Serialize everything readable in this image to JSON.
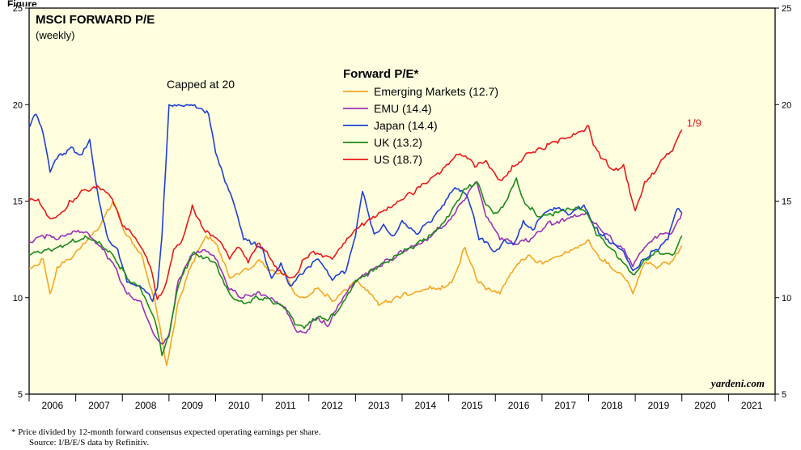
{
  "figure_label": "Figure",
  "footnote": "*   Price divided by 12-month forward consensus expected operating earnings per share.",
  "source": "Source: I/B/E/S data by Refinitiv.",
  "chart_data": {
    "type": "line",
    "title": "MSCI FORWARD P/E",
    "subtitle": "(weekly)",
    "legend_title": "Forward P/E*",
    "annotation": "Capped at 20",
    "end_label": "1/9",
    "watermark": "yardeni.com",
    "xlim": [
      2006.0,
      2022.0
    ],
    "ylim": [
      5,
      25
    ],
    "y_ticks": [
      5,
      10,
      15,
      20,
      25
    ],
    "x_tick_labels": [
      "2006",
      "2007",
      "2008",
      "2009",
      "2010",
      "2011",
      "2012",
      "2013",
      "2014",
      "2015",
      "2016",
      "2017",
      "2018",
      "2019",
      "2020",
      "2021"
    ],
    "grid": false,
    "legend_position": "top-center",
    "background_color": "#ffffe0",
    "series": [
      {
        "name": "Emerging Markets (12.7)",
        "color": "#f5a623",
        "x": [
          2006.0,
          2006.3,
          2006.45,
          2006.6,
          2006.9,
          2007.2,
          2007.5,
          2007.8,
          2008.1,
          2008.4,
          2008.7,
          2008.8,
          2008.95,
          2009.2,
          2009.5,
          2009.8,
          2010.0,
          2010.3,
          2010.5,
          2010.9,
          2011.2,
          2011.5,
          2011.7,
          2011.9,
          2012.2,
          2012.5,
          2012.8,
          2013.0,
          2013.3,
          2013.5,
          2013.8,
          2014.0,
          2014.3,
          2014.6,
          2014.9,
          2015.1,
          2015.35,
          2015.6,
          2015.8,
          2016.1,
          2016.4,
          2016.7,
          2016.9,
          2017.2,
          2017.5,
          2017.8,
          2018.0,
          2018.2,
          2018.5,
          2018.8,
          2018.95,
          2019.2,
          2019.5,
          2019.8,
          2020.0
        ],
        "values": [
          11.5,
          12.0,
          10.2,
          11.6,
          12.0,
          12.8,
          13.6,
          15.0,
          13.2,
          12.3,
          9.8,
          8.6,
          6.5,
          9.8,
          11.8,
          13.2,
          12.8,
          11.0,
          11.2,
          11.9,
          11.4,
          11.3,
          10.2,
          10.0,
          10.5,
          9.8,
          10.4,
          10.8,
          10.2,
          9.6,
          9.9,
          10.1,
          10.3,
          10.6,
          10.5,
          11.0,
          12.6,
          10.9,
          10.4,
          10.2,
          11.5,
          12.2,
          11.8,
          12.0,
          12.4,
          12.7,
          13.0,
          12.2,
          11.5,
          10.9,
          10.2,
          11.8,
          11.6,
          11.9,
          12.7
        ]
      },
      {
        "name": "EMU (14.4)",
        "color": "#9b30b8",
        "x": [
          2006.0,
          2006.3,
          2006.6,
          2006.9,
          2007.2,
          2007.5,
          2007.8,
          2008.1,
          2008.4,
          2008.7,
          2008.85,
          2009.0,
          2009.2,
          2009.5,
          2009.8,
          2010.0,
          2010.3,
          2010.6,
          2010.9,
          2011.2,
          2011.5,
          2011.7,
          2011.9,
          2012.2,
          2012.4,
          2012.7,
          2013.0,
          2013.3,
          2013.6,
          2013.9,
          2014.2,
          2014.5,
          2014.8,
          2015.0,
          2015.3,
          2015.6,
          2015.8,
          2016.1,
          2016.5,
          2016.8,
          2017.1,
          2017.4,
          2017.7,
          2017.95,
          2018.2,
          2018.5,
          2018.8,
          2018.95,
          2019.2,
          2019.5,
          2019.8,
          2020.0
        ],
        "values": [
          12.9,
          13.2,
          13.0,
          13.3,
          13.4,
          12.7,
          11.8,
          10.2,
          9.8,
          8.0,
          7.6,
          8.1,
          10.9,
          12.2,
          12.4,
          12.0,
          10.4,
          10.0,
          10.3,
          10.0,
          9.5,
          8.4,
          8.2,
          9.0,
          8.5,
          9.8,
          10.8,
          11.3,
          11.8,
          12.2,
          12.7,
          13.0,
          13.6,
          14.0,
          15.0,
          16.0,
          14.2,
          13.0,
          12.8,
          13.1,
          13.8,
          14.0,
          14.3,
          14.4,
          13.7,
          13.0,
          12.3,
          11.6,
          12.6,
          13.2,
          13.4,
          14.4
        ]
      },
      {
        "name": "Japan (14.4)",
        "color": "#1f3fd8",
        "x": [
          2006.0,
          2006.15,
          2006.3,
          2006.45,
          2006.6,
          2006.9,
          2007.1,
          2007.3,
          2007.5,
          2007.7,
          2007.9,
          2008.1,
          2008.3,
          2008.5,
          2008.65,
          2008.75,
          2008.85,
          2009.0,
          2009.2,
          2009.4,
          2009.55,
          2009.7,
          2009.85,
          2010.0,
          2010.2,
          2010.4,
          2010.6,
          2010.8,
          2011.0,
          2011.2,
          2011.4,
          2011.6,
          2011.8,
          2012.0,
          2012.2,
          2012.5,
          2012.8,
          2013.0,
          2013.15,
          2013.4,
          2013.6,
          2013.8,
          2014.0,
          2014.3,
          2014.6,
          2014.9,
          2015.1,
          2015.35,
          2015.5,
          2015.65,
          2015.8,
          2016.0,
          2016.2,
          2016.4,
          2016.6,
          2016.8,
          2017.0,
          2017.3,
          2017.6,
          2017.9,
          2018.1,
          2018.3,
          2018.55,
          2018.75,
          2018.95,
          2019.2,
          2019.45,
          2019.7,
          2019.9,
          2020.0
        ],
        "values": [
          18.8,
          19.5,
          18.5,
          16.5,
          17.2,
          17.8,
          17.4,
          18.2,
          15.0,
          13.0,
          12.5,
          10.8,
          10.6,
          10.3,
          9.8,
          10.5,
          13.2,
          20.0,
          20.0,
          20.0,
          20.0,
          19.8,
          19.5,
          17.5,
          16.0,
          14.8,
          13.0,
          12.8,
          12.6,
          11.0,
          11.8,
          10.6,
          11.2,
          11.6,
          12.0,
          10.9,
          11.4,
          13.2,
          15.5,
          13.3,
          13.8,
          13.2,
          14.0,
          13.3,
          13.9,
          14.8,
          15.6,
          15.4,
          14.5,
          13.0,
          12.9,
          12.4,
          13.0,
          12.8,
          14.0,
          13.5,
          14.2,
          14.6,
          14.3,
          14.8,
          13.7,
          13.2,
          12.8,
          12.4,
          11.4,
          12.0,
          12.5,
          13.0,
          14.6,
          14.4
        ]
      },
      {
        "name": "UK (13.2)",
        "color": "#1b8a1b",
        "x": [
          2006.0,
          2006.3,
          2006.6,
          2006.9,
          2007.2,
          2007.5,
          2007.8,
          2008.1,
          2008.4,
          2008.7,
          2008.85,
          2009.0,
          2009.2,
          2009.5,
          2009.8,
          2010.0,
          2010.3,
          2010.6,
          2010.9,
          2011.2,
          2011.5,
          2011.7,
          2011.9,
          2012.2,
          2012.4,
          2012.7,
          2013.0,
          2013.3,
          2013.6,
          2013.9,
          2014.2,
          2014.5,
          2014.8,
          2015.0,
          2015.3,
          2015.6,
          2015.8,
          2016.0,
          2016.2,
          2016.45,
          2016.6,
          2016.9,
          2017.2,
          2017.5,
          2017.8,
          2017.95,
          2018.2,
          2018.5,
          2018.8,
          2018.95,
          2019.2,
          2019.5,
          2019.8,
          2020.0
        ],
        "values": [
          12.2,
          12.4,
          12.6,
          12.9,
          13.2,
          12.9,
          12.2,
          11.0,
          10.4,
          8.8,
          7.0,
          8.0,
          10.6,
          12.3,
          12.1,
          11.8,
          10.2,
          9.7,
          10.0,
          9.8,
          9.4,
          8.6,
          8.4,
          9.0,
          8.8,
          9.6,
          10.9,
          11.4,
          11.8,
          12.2,
          12.6,
          13.0,
          13.6,
          14.2,
          15.5,
          16.0,
          14.8,
          14.4,
          14.9,
          16.2,
          15.1,
          14.2,
          14.3,
          14.5,
          14.6,
          14.4,
          13.2,
          12.5,
          11.7,
          11.2,
          12.0,
          12.4,
          12.2,
          13.2
        ]
      },
      {
        "name": "US (18.7)",
        "color": "#e81919",
        "x": [
          2006.0,
          2006.2,
          2006.45,
          2006.65,
          2006.9,
          2007.2,
          2007.5,
          2007.75,
          2008.0,
          2008.2,
          2008.4,
          2008.6,
          2008.75,
          2008.9,
          2009.1,
          2009.3,
          2009.5,
          2009.7,
          2009.9,
          2010.1,
          2010.3,
          2010.5,
          2010.7,
          2010.9,
          2011.1,
          2011.3,
          2011.5,
          2011.7,
          2011.9,
          2012.1,
          2012.3,
          2012.5,
          2012.7,
          2012.9,
          2013.1,
          2013.3,
          2013.5,
          2013.7,
          2013.9,
          2014.2,
          2014.5,
          2014.8,
          2015.0,
          2015.2,
          2015.4,
          2015.6,
          2015.8,
          2016.1,
          2016.4,
          2016.7,
          2017.0,
          2017.3,
          2017.6,
          2017.9,
          2018.0,
          2018.1,
          2018.3,
          2018.55,
          2018.75,
          2018.85,
          2019.0,
          2019.2,
          2019.4,
          2019.6,
          2019.8,
          2020.0
        ],
        "values": [
          15.0,
          15.1,
          14.1,
          14.3,
          15.0,
          15.6,
          15.7,
          15.2,
          13.7,
          13.3,
          12.6,
          11.6,
          9.9,
          10.5,
          12.5,
          13.1,
          14.8,
          13.7,
          13.2,
          12.9,
          12.0,
          12.6,
          11.8,
          12.8,
          12.4,
          11.6,
          11.2,
          11.1,
          12.0,
          12.4,
          12.1,
          12.0,
          12.6,
          13.2,
          13.7,
          14.1,
          14.4,
          14.7,
          15.0,
          15.4,
          15.9,
          16.4,
          16.9,
          17.4,
          17.2,
          16.8,
          17.1,
          16.1,
          16.8,
          17.5,
          17.7,
          18.1,
          18.3,
          18.6,
          18.9,
          17.9,
          17.2,
          16.6,
          16.9,
          15.9,
          14.5,
          16.0,
          16.4,
          17.2,
          17.6,
          18.7
        ]
      }
    ]
  }
}
